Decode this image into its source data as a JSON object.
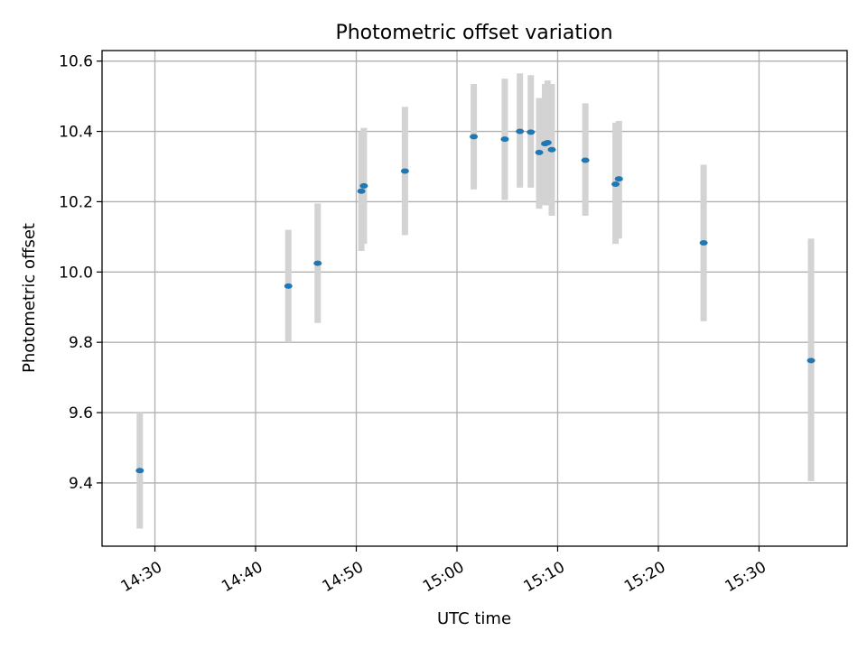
{
  "chart_data": {
    "type": "scatter",
    "title": "Photometric offset variation",
    "xlabel": "UTC time",
    "ylabel": "Photometric offset",
    "xlim": [
      "14:24:45",
      "15:38:45"
    ],
    "ylim": [
      9.22,
      10.63
    ],
    "x_ticks": [
      "14:30",
      "14:40",
      "14:50",
      "15:00",
      "15:10",
      "15:20",
      "15:30"
    ],
    "y_ticks": [
      "9.4",
      "9.6",
      "9.8",
      "10.0",
      "10.2",
      "10.4",
      "10.6"
    ],
    "grid": true,
    "colors": {
      "point": "#1f77b4",
      "errorbar": "#d3d3d3"
    },
    "points": [
      {
        "x": "14:28:30",
        "y": 9.435,
        "low": 9.27,
        "high": 9.6
      },
      {
        "x": "14:43:15",
        "y": 9.96,
        "low": 9.8,
        "high": 10.12
      },
      {
        "x": "14:46:10",
        "y": 10.025,
        "low": 9.855,
        "high": 10.195
      },
      {
        "x": "14:50:30",
        "y": 10.23,
        "low": 10.06,
        "high": 10.4
      },
      {
        "x": "14:50:45",
        "y": 10.245,
        "low": 10.08,
        "high": 10.41
      },
      {
        "x": "14:54:50",
        "y": 10.287,
        "low": 10.105,
        "high": 10.47
      },
      {
        "x": "15:01:40",
        "y": 10.385,
        "low": 10.235,
        "high": 10.535
      },
      {
        "x": "15:04:45",
        "y": 10.378,
        "low": 10.205,
        "high": 10.55
      },
      {
        "x": "15:06:15",
        "y": 10.4,
        "low": 10.24,
        "high": 10.565
      },
      {
        "x": "15:07:20",
        "y": 10.398,
        "low": 10.24,
        "high": 10.56
      },
      {
        "x": "15:08:10",
        "y": 10.34,
        "low": 10.18,
        "high": 10.495
      },
      {
        "x": "15:08:45",
        "y": 10.365,
        "low": 10.19,
        "high": 10.535
      },
      {
        "x": "15:09:00",
        "y": 10.368,
        "low": 10.19,
        "high": 10.545
      },
      {
        "x": "15:09:25",
        "y": 10.348,
        "low": 10.16,
        "high": 10.535
      },
      {
        "x": "15:12:45",
        "y": 10.318,
        "low": 10.16,
        "high": 10.48
      },
      {
        "x": "15:15:45",
        "y": 10.25,
        "low": 10.08,
        "high": 10.425
      },
      {
        "x": "15:16:05",
        "y": 10.265,
        "low": 10.095,
        "high": 10.43
      },
      {
        "x": "15:24:30",
        "y": 10.083,
        "low": 9.86,
        "high": 10.305
      },
      {
        "x": "15:35:10",
        "y": 9.748,
        "low": 9.405,
        "high": 10.095
      }
    ]
  }
}
